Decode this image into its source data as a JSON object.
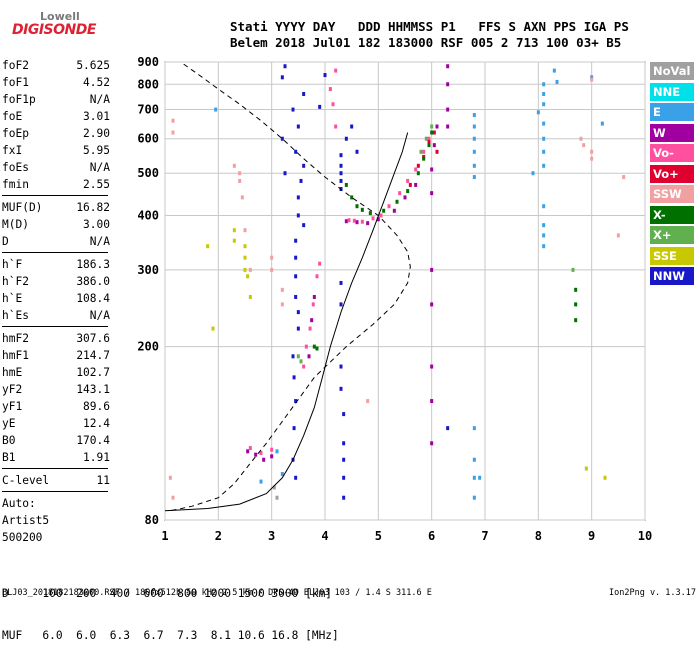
{
  "logo": {
    "top": "Lowell",
    "bottom": "DIGISONDE"
  },
  "header": {
    "line1": "Stati YYYY DAY   DDD HHMMSS P1   FFS S AXN PPS IGA PS",
    "line2": "Belem 2018 Jul01 182 183000 RSF 005 2 713 100 03+ B5"
  },
  "params_group1": [
    {
      "name": "foF2",
      "value": "5.625"
    },
    {
      "name": "foF1",
      "value": "4.52"
    },
    {
      "name": "foF1p",
      "value": "N/A"
    },
    {
      "name": "foE",
      "value": "3.01"
    },
    {
      "name": "foEp",
      "value": "2.90"
    },
    {
      "name": "fxI",
      "value": "5.95"
    },
    {
      "name": "foEs",
      "value": "N/A"
    },
    {
      "name": "fmin",
      "value": "2.55"
    }
  ],
  "params_group2": [
    {
      "name": "MUF(D)",
      "value": "16.82"
    },
    {
      "name": "M(D)",
      "value": "3.00"
    },
    {
      "name": "D",
      "value": "N/A"
    }
  ],
  "params_group3": [
    {
      "name": "h`F",
      "value": "186.3"
    },
    {
      "name": "h`F2",
      "value": "386.0"
    },
    {
      "name": "h`E",
      "value": "108.4"
    },
    {
      "name": "h`Es",
      "value": "N/A"
    }
  ],
  "params_group4": [
    {
      "name": "hmF2",
      "value": "307.6"
    },
    {
      "name": "hmF1",
      "value": "214.7"
    },
    {
      "name": "hmE",
      "value": "102.7"
    },
    {
      "name": "yF2",
      "value": "143.1"
    },
    {
      "name": "yF1",
      "value": "89.6"
    },
    {
      "name": "yE",
      "value": "12.4"
    },
    {
      "name": "B0",
      "value": "170.4"
    },
    {
      "name": "B1",
      "value": "1.91"
    }
  ],
  "params_group5": [
    {
      "name": "C-level",
      "value": "11"
    }
  ],
  "auto_lines": [
    "Auto:",
    "Artist5",
    "500200"
  ],
  "legend": [
    {
      "label": "NoVal",
      "color": "#a0a0a0"
    },
    {
      "label": "NNE",
      "color": "#00e0e8"
    },
    {
      "label": "E",
      "color": "#3aa0e8"
    },
    {
      "label": "W",
      "color": "#a000a0"
    },
    {
      "label": "Vo-",
      "color": "#ff50a0"
    },
    {
      "label": "Vo+",
      "color": "#e00030"
    },
    {
      "label": "SSW",
      "color": "#f0a0a0"
    },
    {
      "label": "X-",
      "color": "#007000"
    },
    {
      "label": "X+",
      "color": "#60b050"
    },
    {
      "label": "SSE",
      "color": "#c8c800"
    },
    {
      "label": "NNW",
      "color": "#1818c8"
    }
  ],
  "bottom_table": {
    "row1": "D     100  200  400  600  800 1000 1500 3000 [km]",
    "row2": "MUF   6.0  6.0  6.3  6.7  7.3  8.1 10.6 16.8 [MHz]"
  },
  "footer": {
    "left": "BLJ03_2018182183000.RSF / 180fx512h 50 kHz 2.5 km / DPS-4D BLJ03 103 / 1.4 S 311.6 E",
    "right": "Ion2Png v. 1.3.17"
  },
  "chart_data": {
    "type": "scatter",
    "title": "",
    "xlabel": "",
    "ylabel": "",
    "xlim": [
      1,
      10
    ],
    "ylim": [
      80,
      900
    ],
    "xticks": [
      1,
      2,
      3,
      4,
      5,
      6,
      7,
      8,
      9,
      10
    ],
    "yticks": [
      80,
      200,
      300,
      400,
      500,
      600,
      700,
      800,
      900
    ],
    "grid": true,
    "x_scale": "linear",
    "y_scale": "log",
    "profile_curve": [
      [
        1.0,
        84
      ],
      [
        1.8,
        85
      ],
      [
        2.4,
        87
      ],
      [
        2.9,
        92
      ],
      [
        3.2,
        100
      ],
      [
        3.4,
        110
      ],
      [
        3.6,
        125
      ],
      [
        3.8,
        145
      ],
      [
        3.95,
        170
      ],
      [
        4.1,
        200
      ],
      [
        4.3,
        240
      ],
      [
        4.5,
        280
      ],
      [
        4.7,
        320
      ],
      [
        4.9,
        370
      ],
      [
        5.1,
        430
      ],
      [
        5.3,
        500
      ],
      [
        5.45,
        560
      ],
      [
        5.55,
        620
      ]
    ],
    "profile_dashed": [
      [
        1.35,
        890
      ],
      [
        1.7,
        830
      ],
      [
        2.0,
        780
      ],
      [
        2.4,
        720
      ],
      [
        2.8,
        660
      ],
      [
        3.2,
        600
      ],
      [
        3.6,
        540
      ],
      [
        4.0,
        490
      ],
      [
        4.5,
        440
      ],
      [
        5.0,
        400
      ],
      [
        5.35,
        360
      ],
      [
        5.55,
        330
      ],
      [
        5.6,
        305
      ],
      [
        5.55,
        280
      ],
      [
        5.3,
        250
      ],
      [
        4.9,
        225
      ],
      [
        4.4,
        200
      ],
      [
        3.8,
        170
      ],
      [
        3.3,
        140
      ],
      [
        2.9,
        120
      ],
      [
        2.6,
        108
      ],
      [
        2.3,
        97
      ],
      [
        2.0,
        90
      ],
      [
        1.5,
        86
      ],
      [
        1.1,
        84
      ]
    ],
    "series": [
      {
        "name": "W",
        "color": "#a000a0",
        "points": [
          [
            2.55,
            115
          ],
          [
            2.7,
            113
          ],
          [
            2.85,
            110
          ],
          [
            3.0,
            112
          ],
          [
            3.7,
            190
          ],
          [
            3.75,
            230
          ],
          [
            3.8,
            260
          ],
          [
            4.4,
            388
          ],
          [
            4.6,
            386
          ],
          [
            4.8,
            384
          ],
          [
            5.0,
            392
          ],
          [
            5.3,
            410
          ],
          [
            5.5,
            440
          ],
          [
            5.7,
            470
          ],
          [
            6.0,
            510
          ],
          [
            6.05,
            580
          ],
          [
            6.1,
            640
          ],
          [
            6.3,
            640
          ],
          [
            6.3,
            700
          ],
          [
            6.3,
            800
          ],
          [
            6.3,
            880
          ],
          [
            6.0,
            450
          ],
          [
            6.0,
            300
          ],
          [
            6.0,
            250
          ],
          [
            6.0,
            180
          ],
          [
            6.0,
            150
          ],
          [
            6.0,
            120
          ]
        ]
      },
      {
        "name": "Vo-",
        "color": "#ff50a0",
        "points": [
          [
            2.6,
            117
          ],
          [
            2.8,
            114
          ],
          [
            3.0,
            116
          ],
          [
            3.6,
            180
          ],
          [
            3.65,
            200
          ],
          [
            3.72,
            220
          ],
          [
            3.78,
            250
          ],
          [
            3.85,
            290
          ],
          [
            3.9,
            310
          ],
          [
            4.45,
            390
          ],
          [
            4.55,
            389
          ],
          [
            4.7,
            387
          ],
          [
            4.9,
            394
          ],
          [
            5.05,
            400
          ],
          [
            5.2,
            420
          ],
          [
            5.4,
            450
          ],
          [
            5.55,
            480
          ],
          [
            5.7,
            510
          ],
          [
            5.85,
            560
          ],
          [
            5.95,
            600
          ],
          [
            4.2,
            860
          ],
          [
            4.1,
            780
          ],
          [
            4.15,
            720
          ],
          [
            4.2,
            640
          ]
        ]
      },
      {
        "name": "Vo+",
        "color": "#e00030",
        "points": [
          [
            5.6,
            470
          ],
          [
            5.75,
            520
          ],
          [
            5.85,
            545
          ],
          [
            5.95,
            590
          ],
          [
            6.05,
            620
          ],
          [
            6.1,
            560
          ]
        ]
      },
      {
        "name": "X-",
        "color": "#007000",
        "points": [
          [
            4.4,
            470
          ],
          [
            4.5,
            440
          ],
          [
            4.6,
            420
          ],
          [
            4.7,
            412
          ],
          [
            4.85,
            405
          ],
          [
            5.1,
            410
          ],
          [
            5.35,
            430
          ],
          [
            5.55,
            455
          ],
          [
            5.75,
            500
          ],
          [
            5.85,
            540
          ],
          [
            5.95,
            580
          ],
          [
            6.0,
            620
          ],
          [
            3.8,
            200
          ],
          [
            3.85,
            198
          ],
          [
            8.7,
            270
          ],
          [
            8.7,
            250
          ],
          [
            8.7,
            230
          ]
        ]
      },
      {
        "name": "X+",
        "color": "#60b050",
        "points": [
          [
            5.8,
            560
          ],
          [
            5.9,
            600
          ],
          [
            6.0,
            640
          ],
          [
            3.5,
            190
          ],
          [
            3.55,
            185
          ],
          [
            8.65,
            300
          ]
        ]
      },
      {
        "name": "E",
        "color": "#3aa0e8",
        "points": [
          [
            6.8,
            680
          ],
          [
            6.8,
            640
          ],
          [
            6.8,
            600
          ],
          [
            6.8,
            560
          ],
          [
            6.8,
            520
          ],
          [
            6.8,
            490
          ],
          [
            6.8,
            130
          ],
          [
            6.8,
            110
          ],
          [
            6.8,
            100
          ],
          [
            6.8,
            90
          ],
          [
            8.1,
            650
          ],
          [
            8.1,
            600
          ],
          [
            8.1,
            560
          ],
          [
            8.1,
            520
          ],
          [
            8.1,
            420
          ],
          [
            8.1,
            380
          ],
          [
            8.1,
            360
          ],
          [
            8.1,
            340
          ],
          [
            8.1,
            800
          ],
          [
            8.1,
            760
          ],
          [
            8.1,
            720
          ],
          [
            8.3,
            860
          ],
          [
            8.35,
            810
          ],
          [
            8.0,
            690
          ],
          [
            9.2,
            650
          ],
          [
            9.0,
            830
          ],
          [
            1.95,
            700
          ],
          [
            3.1,
            115
          ],
          [
            3.2,
            102
          ],
          [
            2.8,
            98
          ],
          [
            7.9,
            500
          ],
          [
            6.9,
            100
          ]
        ]
      },
      {
        "name": "NNW",
        "color": "#1818c8",
        "points": [
          [
            3.25,
            880
          ],
          [
            3.2,
            830
          ],
          [
            3.4,
            700
          ],
          [
            3.5,
            640
          ],
          [
            3.45,
            560
          ],
          [
            3.6,
            520
          ],
          [
            3.55,
            480
          ],
          [
            3.5,
            440
          ],
          [
            3.5,
            400
          ],
          [
            3.45,
            350
          ],
          [
            3.45,
            320
          ],
          [
            3.45,
            290
          ],
          [
            3.45,
            260
          ],
          [
            3.5,
            240
          ],
          [
            3.5,
            220
          ],
          [
            3.4,
            190
          ],
          [
            3.42,
            170
          ],
          [
            3.45,
            150
          ],
          [
            3.42,
            130
          ],
          [
            3.4,
            110
          ],
          [
            3.45,
            100
          ],
          [
            4.3,
            550
          ],
          [
            4.3,
            520
          ],
          [
            4.3,
            500
          ],
          [
            4.3,
            480
          ],
          [
            4.3,
            460
          ],
          [
            4.3,
            280
          ],
          [
            4.3,
            250
          ],
          [
            4.3,
            180
          ],
          [
            4.3,
            160
          ],
          [
            4.35,
            140
          ],
          [
            4.35,
            120
          ],
          [
            4.35,
            110
          ],
          [
            4.35,
            100
          ],
          [
            4.35,
            90
          ],
          [
            3.9,
            710
          ],
          [
            4.0,
            840
          ],
          [
            3.6,
            760
          ],
          [
            4.4,
            600
          ],
          [
            3.2,
            600
          ],
          [
            4.6,
            560
          ],
          [
            4.5,
            640
          ],
          [
            3.25,
            500
          ],
          [
            6.3,
            130
          ],
          [
            3.6,
            380
          ]
        ]
      },
      {
        "name": "SSW",
        "color": "#f0a0a0",
        "points": [
          [
            1.15,
            660
          ],
          [
            1.15,
            620
          ],
          [
            2.3,
            520
          ],
          [
            2.4,
            500
          ],
          [
            2.4,
            480
          ],
          [
            2.45,
            440
          ],
          [
            2.5,
            370
          ],
          [
            2.6,
            300
          ],
          [
            3.0,
            300
          ],
          [
            3.0,
            320
          ],
          [
            3.2,
            270
          ],
          [
            3.2,
            250
          ],
          [
            8.8,
            600
          ],
          [
            8.85,
            580
          ],
          [
            9.0,
            560
          ],
          [
            9.0,
            540
          ],
          [
            9.0,
            820
          ],
          [
            1.1,
            100
          ],
          [
            1.15,
            90
          ],
          [
            4.8,
            150
          ],
          [
            9.6,
            490
          ],
          [
            9.5,
            360
          ]
        ]
      },
      {
        "name": "SSE",
        "color": "#c8c800",
        "points": [
          [
            2.5,
            320
          ],
          [
            2.5,
            300
          ],
          [
            2.55,
            290
          ],
          [
            2.3,
            370
          ],
          [
            2.3,
            350
          ],
          [
            2.5,
            340
          ],
          [
            2.6,
            260
          ],
          [
            1.8,
            340
          ],
          [
            1.9,
            220
          ],
          [
            8.9,
            105
          ],
          [
            9.25,
            100
          ]
        ]
      },
      {
        "name": "NoVal",
        "color": "#a0a0a0",
        "points": [
          [
            3.1,
            90
          ],
          [
            3.05,
            95
          ]
        ]
      }
    ]
  }
}
